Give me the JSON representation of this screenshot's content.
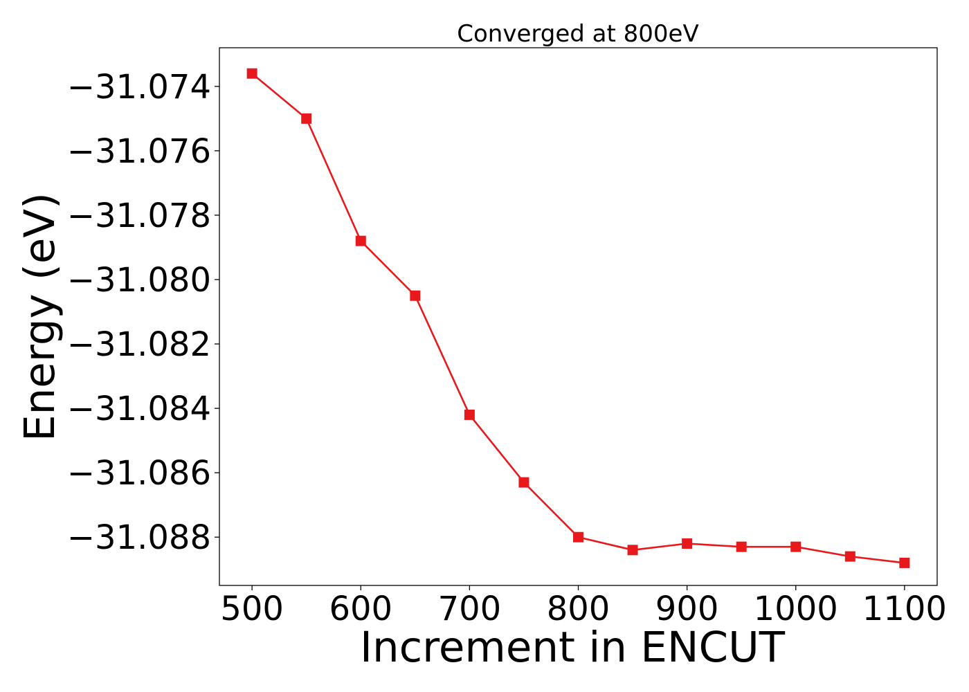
{
  "chart_data": {
    "type": "line",
    "title": "Converged at 800eV",
    "xlabel": "Increment in ENCUT",
    "ylabel": "Energy (eV)",
    "x": [
      500,
      550,
      600,
      650,
      700,
      750,
      800,
      850,
      900,
      950,
      1000,
      1050,
      1100
    ],
    "series": [
      {
        "values": [
          -31.0736,
          -31.075,
          -31.0788,
          -31.0805,
          -31.0842,
          -31.0863,
          -31.088,
          -31.0884,
          -31.0882,
          -31.0883,
          -31.0883,
          -31.0886,
          -31.0888
        ],
        "color": "#e8191c",
        "marker": "square"
      }
    ],
    "xticks": [
      500,
      600,
      700,
      800,
      900,
      1000,
      1100
    ],
    "xtick_labels": [
      "500",
      "600",
      "700",
      "800",
      "900",
      "1000",
      "1100"
    ],
    "yticks": [
      -31.074,
      -31.076,
      -31.078,
      -31.08,
      -31.082,
      -31.084,
      -31.086,
      -31.088
    ],
    "ytick_labels": [
      "−31.074",
      "−31.076",
      "−31.078",
      "−31.080",
      "−31.082",
      "−31.084",
      "−31.086",
      "−31.088"
    ],
    "xlim": [
      470,
      1130
    ],
    "ylim": [
      -31.0895,
      -31.0728
    ],
    "grid": false,
    "legend": "none"
  }
}
